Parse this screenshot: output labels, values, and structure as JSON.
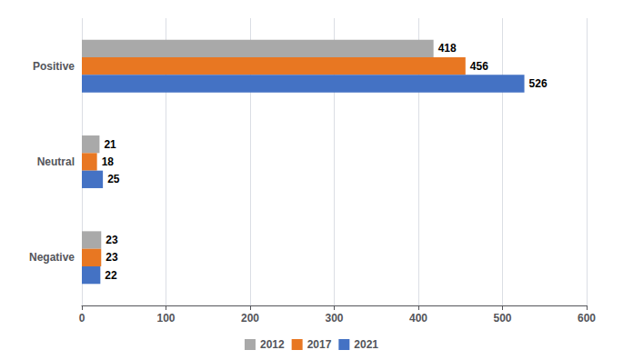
{
  "chart_data": {
    "type": "bar",
    "orientation": "horizontal",
    "categories": [
      "Positive",
      "Neutral",
      "Negative"
    ],
    "series": [
      {
        "name": "2012",
        "color": "#A9A9A9",
        "values": [
          418,
          21,
          23
        ]
      },
      {
        "name": "2017",
        "color": "#E87722",
        "values": [
          456,
          18,
          23
        ]
      },
      {
        "name": "2021",
        "color": "#4472C4",
        "values": [
          526,
          25,
          22
        ]
      }
    ],
    "xlim": [
      0,
      600
    ],
    "xticks": [
      0,
      100,
      200,
      300,
      400,
      500,
      600
    ],
    "grid": true,
    "data_labels": true,
    "legend": "bottom"
  }
}
